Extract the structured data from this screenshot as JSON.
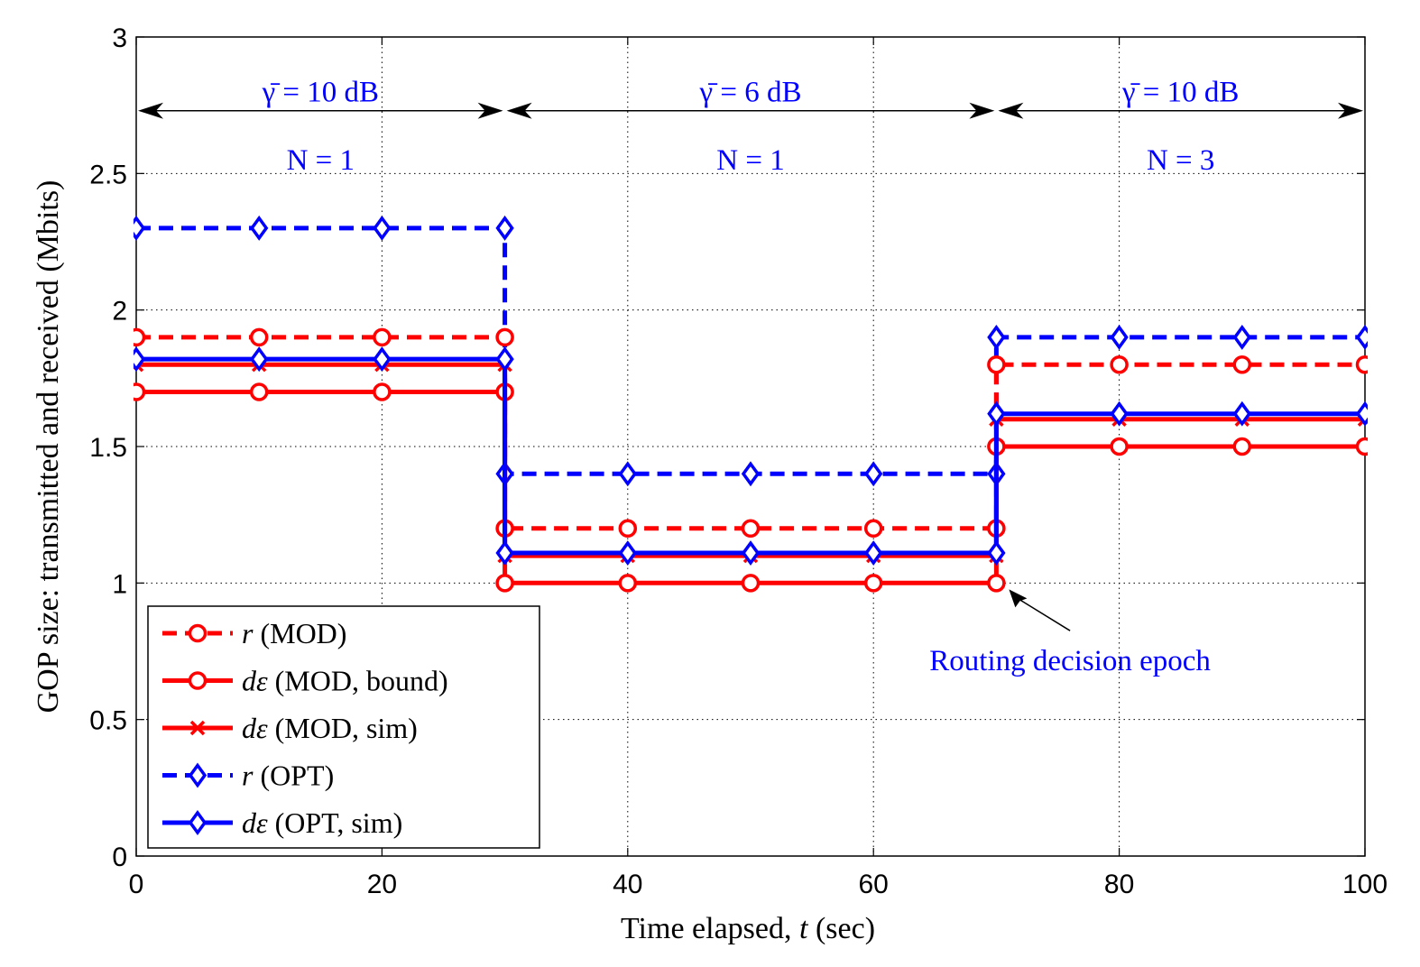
{
  "chart_data": {
    "type": "line",
    "title": "",
    "xlabel": "Time elapsed, t (sec)",
    "ylabel": "GOP size: transmitted and received (Mbits)",
    "xlim": [
      0,
      100
    ],
    "ylim": [
      0,
      3
    ],
    "xticks": [
      0,
      20,
      40,
      60,
      80,
      100
    ],
    "yticks": [
      0,
      0.5,
      1,
      1.5,
      2,
      2.5,
      3
    ],
    "ytick_labels": [
      "0",
      "0.5",
      "1",
      "1.5",
      "2",
      "2.5",
      "3"
    ],
    "grid": true,
    "legend_position": "bottom-left",
    "series": [
      {
        "name": "r (MOD)",
        "color": "#ff0000",
        "dash": true,
        "marker": "circle",
        "legend_symbol": "r",
        "legend_text": " (MOD)",
        "path": [
          [
            0,
            1.9
          ],
          [
            30,
            1.9
          ],
          [
            30,
            1.2
          ],
          [
            70,
            1.2
          ],
          [
            70,
            1.8
          ],
          [
            100,
            1.8
          ]
        ],
        "markers": [
          [
            0,
            1.9
          ],
          [
            10,
            1.9
          ],
          [
            20,
            1.9
          ],
          [
            30,
            1.9
          ],
          [
            30,
            1.2
          ],
          [
            40,
            1.2
          ],
          [
            50,
            1.2
          ],
          [
            60,
            1.2
          ],
          [
            70,
            1.2
          ],
          [
            70,
            1.8
          ],
          [
            80,
            1.8
          ],
          [
            90,
            1.8
          ],
          [
            100,
            1.8
          ]
        ]
      },
      {
        "name": "d^ε (MOD, bound)",
        "color": "#ff0000",
        "dash": false,
        "marker": "circle",
        "legend_symbol": "dε",
        "legend_text": " (MOD, bound)",
        "path": [
          [
            0,
            1.7
          ],
          [
            30,
            1.7
          ],
          [
            30,
            1.0
          ],
          [
            70,
            1.0
          ],
          [
            70,
            1.5
          ],
          [
            100,
            1.5
          ]
        ],
        "markers": [
          [
            0,
            1.7
          ],
          [
            10,
            1.7
          ],
          [
            20,
            1.7
          ],
          [
            30,
            1.7
          ],
          [
            30,
            1.0
          ],
          [
            40,
            1.0
          ],
          [
            50,
            1.0
          ],
          [
            60,
            1.0
          ],
          [
            70,
            1.0
          ],
          [
            70,
            1.5
          ],
          [
            80,
            1.5
          ],
          [
            90,
            1.5
          ],
          [
            100,
            1.5
          ]
        ]
      },
      {
        "name": "d^ε (MOD, sim)",
        "color": "#ff0000",
        "dash": false,
        "marker": "x",
        "legend_symbol": "dε",
        "legend_text": " (MOD, sim)",
        "path": [
          [
            0,
            1.8
          ],
          [
            30,
            1.8
          ],
          [
            30,
            1.1
          ],
          [
            70,
            1.1
          ],
          [
            70,
            1.6
          ],
          [
            100,
            1.6
          ]
        ],
        "markers": [
          [
            0,
            1.8
          ],
          [
            10,
            1.8
          ],
          [
            20,
            1.8
          ],
          [
            30,
            1.8
          ],
          [
            30,
            1.1
          ],
          [
            40,
            1.1
          ],
          [
            50,
            1.1
          ],
          [
            60,
            1.1
          ],
          [
            70,
            1.1
          ],
          [
            70,
            1.6
          ],
          [
            80,
            1.6
          ],
          [
            90,
            1.6
          ],
          [
            100,
            1.6
          ]
        ]
      },
      {
        "name": "r (OPT)",
        "color": "#0000ff",
        "dash": true,
        "marker": "diamond",
        "legend_symbol": "r",
        "legend_text": " (OPT)",
        "path": [
          [
            0,
            2.3
          ],
          [
            30,
            2.3
          ],
          [
            30,
            1.4
          ],
          [
            70,
            1.4
          ],
          [
            70,
            1.9
          ],
          [
            100,
            1.9
          ]
        ],
        "markers": [
          [
            0,
            2.3
          ],
          [
            10,
            2.3
          ],
          [
            20,
            2.3
          ],
          [
            30,
            2.3
          ],
          [
            30,
            1.4
          ],
          [
            40,
            1.4
          ],
          [
            50,
            1.4
          ],
          [
            60,
            1.4
          ],
          [
            70,
            1.4
          ],
          [
            70,
            1.9
          ],
          [
            80,
            1.9
          ],
          [
            90,
            1.9
          ],
          [
            100,
            1.9
          ]
        ]
      },
      {
        "name": "d^ε (OPT, sim)",
        "color": "#0000ff",
        "dash": false,
        "marker": "diamond",
        "legend_symbol": "dε",
        "legend_text": " (OPT, sim)",
        "path": [
          [
            0,
            1.82
          ],
          [
            30,
            1.82
          ],
          [
            30,
            1.11
          ],
          [
            70,
            1.11
          ],
          [
            70,
            1.62
          ],
          [
            100,
            1.62
          ]
        ],
        "markers": [
          [
            0,
            1.82
          ],
          [
            10,
            1.82
          ],
          [
            20,
            1.82
          ],
          [
            30,
            1.82
          ],
          [
            30,
            1.11
          ],
          [
            40,
            1.11
          ],
          [
            50,
            1.11
          ],
          [
            60,
            1.11
          ],
          [
            70,
            1.11
          ],
          [
            70,
            1.62
          ],
          [
            80,
            1.62
          ],
          [
            90,
            1.62
          ],
          [
            100,
            1.62
          ]
        ]
      }
    ],
    "annotations": {
      "segments": [
        {
          "x0": 0,
          "x1": 30,
          "snr": "γ̄ = 10 dB",
          "n": "N = 1"
        },
        {
          "x0": 30,
          "x1": 70,
          "snr": "γ̄ = 6 dB",
          "n": "N = 1"
        },
        {
          "x0": 70,
          "x1": 100,
          "snr": "γ̄ = 10 dB",
          "n": "N = 3"
        }
      ],
      "arrow_y": 2.73,
      "snr_y": 2.8,
      "n_y": 2.55,
      "epoch_label": "Routing decision epoch",
      "epoch_point": [
        70,
        1.0
      ],
      "epoch_text_at": [
        76,
        0.68
      ]
    }
  }
}
